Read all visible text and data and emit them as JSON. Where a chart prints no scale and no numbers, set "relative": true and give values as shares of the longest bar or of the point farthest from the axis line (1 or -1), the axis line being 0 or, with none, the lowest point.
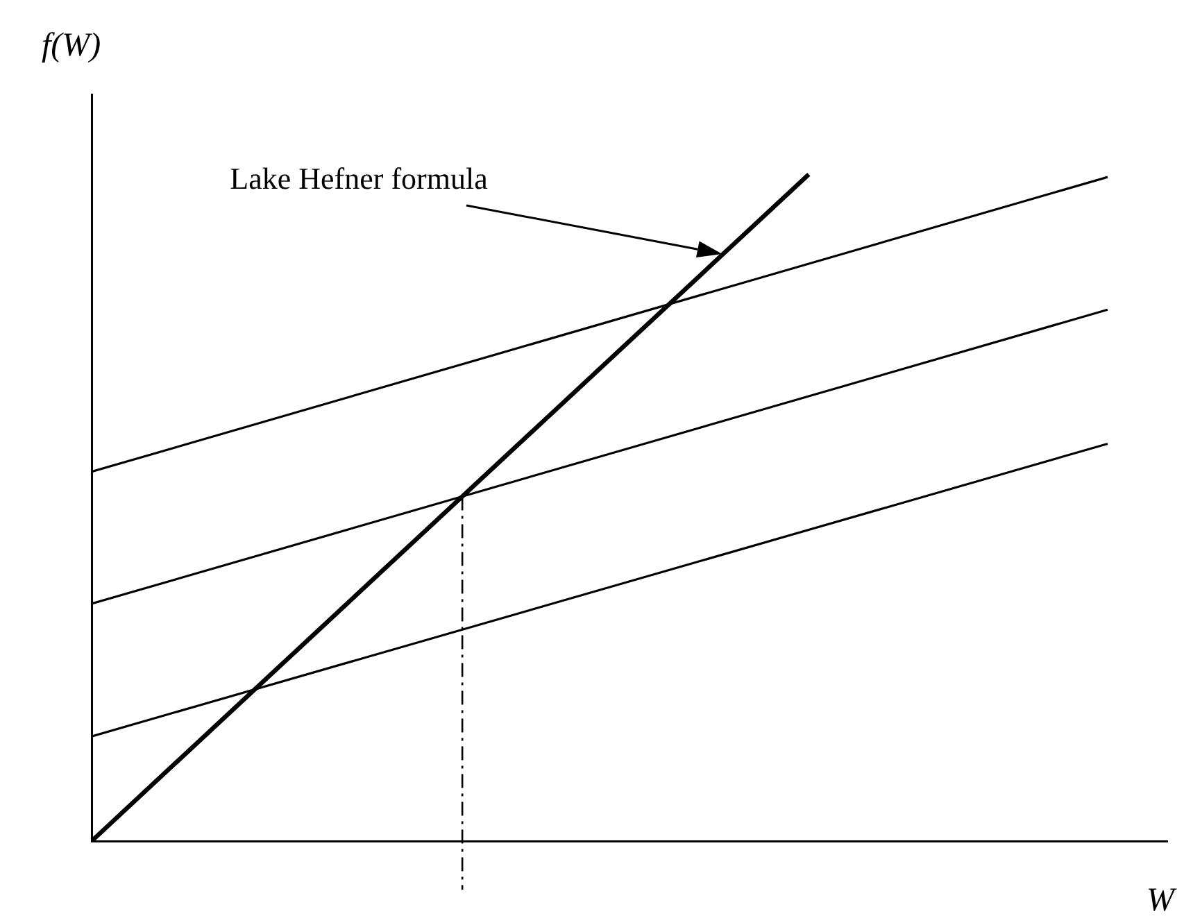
{
  "chart_data": {
    "type": "line",
    "relative": true,
    "xlabel": "W",
    "ylabel": "f(W)",
    "grid": false,
    "legend": false,
    "marker": "none",
    "line_style": "solid",
    "categories": [
      null,
      null,
      null,
      null,
      null,
      null,
      null,
      null,
      null,
      null,
      null,
      null,
      null,
      null,
      null,
      null,
      null,
      null
    ],
    "series": [
      {
        "color": "#000000",
        "values": [
          0,
          null,
          null,
          null,
          null,
          null,
          null,
          null,
          null,
          null,
          null,
          null,
          1,
          null,
          null,
          null,
          null,
          null
        ]
      },
      {
        "color": "#000000",
        "values": [
          0.554,
          null,
          null,
          null,
          null,
          null,
          null,
          null,
          null,
          null,
          null,
          null,
          null,
          null,
          null,
          null,
          null,
          0.996
        ]
      },
      {
        "color": "#000000",
        "values": [
          0.356,
          null,
          null,
          null,
          null,
          null,
          null,
          null,
          null,
          null,
          null,
          null,
          null,
          null,
          null,
          null,
          null,
          0.797
        ]
      },
      {
        "color": "#000000",
        "values": [
          0.157,
          null,
          null,
          null,
          null,
          null,
          null,
          null,
          null,
          null,
          null,
          null,
          null,
          null,
          null,
          null,
          null,
          0.596
        ]
      }
    ],
    "annotations": [
      "Lake Hefner formula"
    ]
  }
}
